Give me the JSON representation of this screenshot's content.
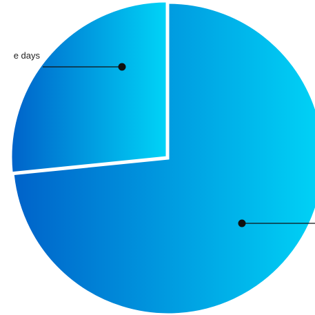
{
  "chart_data": {
    "type": "pie",
    "slices": [
      {
        "label": "e days",
        "value": 26.6
      },
      {
        "label": "",
        "value": 73.4
      }
    ],
    "colors": {
      "gradient_start": "#0062c9",
      "gradient_end": "#00d4f7",
      "separator": "#ffffff",
      "leader": "#111111"
    }
  }
}
